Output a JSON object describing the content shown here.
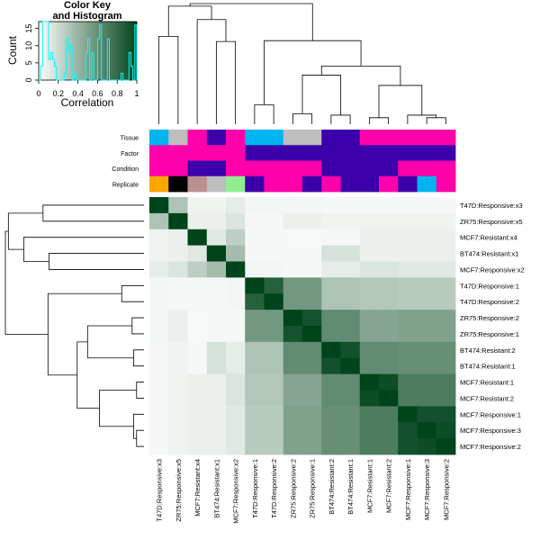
{
  "chart_data": {
    "type": "heatmap",
    "title": "Color Key\nand Histogram",
    "color_key": {
      "title_lines": [
        "Color Key",
        "and Histogram"
      ],
      "xlabel": "Correlation",
      "ylabel": "Count",
      "x_ticks": [
        "0",
        "0.2",
        "0.4",
        "0.6",
        "0.8",
        "1"
      ],
      "y_ticks": [
        "0",
        "5",
        "10",
        "15"
      ],
      "xlim": [
        0,
        1
      ],
      "ylim": [
        0,
        17
      ],
      "histogram_color": "#00ffff",
      "color_low": "#ffffff",
      "color_high": "#00441b"
    },
    "row_labels": [
      "T47D:Responsive:x3",
      "ZR75:Responsive:x5",
      "MCF7:Resistant:x4",
      "BT474:Resistant:x1",
      "MCF7:Responsive:x2",
      "T47D:Responsive:1",
      "T47D:Responsive:2",
      "ZR75:Responsive:2",
      "ZR75:Responsive:1",
      "BT474:Resistant:2",
      "BT474:Resistant:1",
      "MCF7:Resistant:1",
      "MCF7:Resistant:2",
      "MCF7:Responsive:1",
      "MCF7:Responsive:3",
      "MCF7:Responsive:2"
    ],
    "col_labels": [
      "T47D:Responsive:x3",
      "ZR75:Responsive:x5",
      "MCF7:Resistant:x4",
      "BT474:Resistant:x1",
      "MCF7:Responsive:x2",
      "T47D:Responsive:1",
      "T47D:Responsive:2",
      "ZR75:Responsive:2",
      "ZR75:Responsive:1",
      "BT474:Resistant:2",
      "BT474:Resistant:1",
      "MCF7:Resistant:1",
      "MCF7:Resistant:2",
      "MCF7:Responsive:1",
      "MCF7:Responsive:3",
      "MCF7:Responsive:2"
    ],
    "annotation_tracks": [
      {
        "name": "Tissue",
        "colors": [
          "#00b4f0",
          "#bebebe",
          "#ff00aa",
          "#3c00aa",
          "#ff00aa",
          "#00b4f0",
          "#00b4f0",
          "#bebebe",
          "#bebebe",
          "#3c00aa",
          "#3c00aa",
          "#ff00aa",
          "#ff00aa",
          "#ff00aa",
          "#ff00aa",
          "#ff00aa"
        ]
      },
      {
        "name": "Factor",
        "colors": [
          "#ff00aa",
          "#ff00aa",
          "#ff00aa",
          "#ff00aa",
          "#ff00aa",
          "#3c00aa",
          "#3c00aa",
          "#3c00aa",
          "#3c00aa",
          "#3c00aa",
          "#3c00aa",
          "#3c00aa",
          "#3c00aa",
          "#3c00aa",
          "#3c00aa",
          "#3c00aa"
        ]
      },
      {
        "name": "Condition",
        "colors": [
          "#ff00aa",
          "#ff00aa",
          "#3c00aa",
          "#3c00aa",
          "#ff00aa",
          "#ff00aa",
          "#ff00aa",
          "#ff00aa",
          "#ff00aa",
          "#3c00aa",
          "#3c00aa",
          "#3c00aa",
          "#3c00aa",
          "#ff00aa",
          "#ff00aa",
          "#ff00aa"
        ]
      },
      {
        "name": "Replicate",
        "colors": [
          "#ffa500",
          "#000000",
          "#bc8f8f",
          "#bebebe",
          "#90ee90",
          "#3c00aa",
          "#ff00aa",
          "#ff00aa",
          "#3c00aa",
          "#ff00aa",
          "#3c00aa",
          "#3c00aa",
          "#ff00aa",
          "#3c00aa",
          "#00b4f0",
          "#ff00aa"
        ]
      }
    ],
    "values": [
      [
        1.0,
        0.32,
        0.06,
        0.06,
        0.1,
        0.05,
        0.05,
        0.05,
        0.05,
        0.04,
        0.04,
        0.04,
        0.04,
        0.04,
        0.04,
        0.04
      ],
      [
        0.32,
        1.0,
        0.08,
        0.08,
        0.14,
        0.04,
        0.04,
        0.08,
        0.08,
        0.06,
        0.06,
        0.06,
        0.06,
        0.06,
        0.06,
        0.06
      ],
      [
        0.06,
        0.08,
        1.0,
        0.12,
        0.26,
        0.04,
        0.04,
        0.03,
        0.03,
        0.04,
        0.04,
        0.08,
        0.08,
        0.08,
        0.08,
        0.08
      ],
      [
        0.06,
        0.08,
        0.12,
        1.0,
        0.36,
        0.04,
        0.04,
        0.04,
        0.04,
        0.16,
        0.16,
        0.08,
        0.08,
        0.08,
        0.08,
        0.08
      ],
      [
        0.1,
        0.14,
        0.26,
        0.36,
        1.0,
        0.05,
        0.05,
        0.04,
        0.04,
        0.1,
        0.1,
        0.14,
        0.14,
        0.12,
        0.12,
        0.12
      ],
      [
        0.05,
        0.04,
        0.04,
        0.04,
        0.05,
        1.0,
        0.85,
        0.55,
        0.55,
        0.32,
        0.32,
        0.3,
        0.3,
        0.28,
        0.28,
        0.28
      ],
      [
        0.05,
        0.04,
        0.04,
        0.04,
        0.05,
        0.85,
        1.0,
        0.55,
        0.55,
        0.32,
        0.32,
        0.3,
        0.3,
        0.28,
        0.28,
        0.28
      ],
      [
        0.05,
        0.08,
        0.03,
        0.04,
        0.04,
        0.55,
        0.55,
        1.0,
        0.92,
        0.62,
        0.62,
        0.48,
        0.48,
        0.5,
        0.5,
        0.5
      ],
      [
        0.05,
        0.08,
        0.03,
        0.04,
        0.04,
        0.55,
        0.55,
        0.92,
        1.0,
        0.62,
        0.62,
        0.48,
        0.48,
        0.5,
        0.5,
        0.5
      ],
      [
        0.04,
        0.06,
        0.04,
        0.16,
        0.1,
        0.32,
        0.32,
        0.62,
        0.62,
        1.0,
        0.93,
        0.62,
        0.62,
        0.6,
        0.6,
        0.6
      ],
      [
        0.04,
        0.06,
        0.04,
        0.16,
        0.1,
        0.32,
        0.32,
        0.62,
        0.62,
        0.93,
        1.0,
        0.62,
        0.62,
        0.6,
        0.6,
        0.6
      ],
      [
        0.04,
        0.06,
        0.08,
        0.08,
        0.14,
        0.3,
        0.3,
        0.48,
        0.48,
        0.62,
        0.62,
        1.0,
        0.95,
        0.7,
        0.7,
        0.7
      ],
      [
        0.04,
        0.06,
        0.08,
        0.08,
        0.14,
        0.3,
        0.3,
        0.48,
        0.48,
        0.62,
        0.62,
        0.95,
        1.0,
        0.7,
        0.7,
        0.7
      ],
      [
        0.04,
        0.06,
        0.08,
        0.08,
        0.12,
        0.28,
        0.28,
        0.5,
        0.5,
        0.6,
        0.6,
        0.7,
        0.7,
        1.0,
        0.93,
        0.93
      ],
      [
        0.04,
        0.06,
        0.08,
        0.08,
        0.12,
        0.28,
        0.28,
        0.5,
        0.5,
        0.6,
        0.6,
        0.7,
        0.7,
        0.93,
        1.0,
        0.95
      ],
      [
        0.04,
        0.06,
        0.08,
        0.08,
        0.12,
        0.28,
        0.28,
        0.5,
        0.5,
        0.6,
        0.6,
        0.7,
        0.7,
        0.93,
        0.95,
        1.0
      ]
    ]
  }
}
